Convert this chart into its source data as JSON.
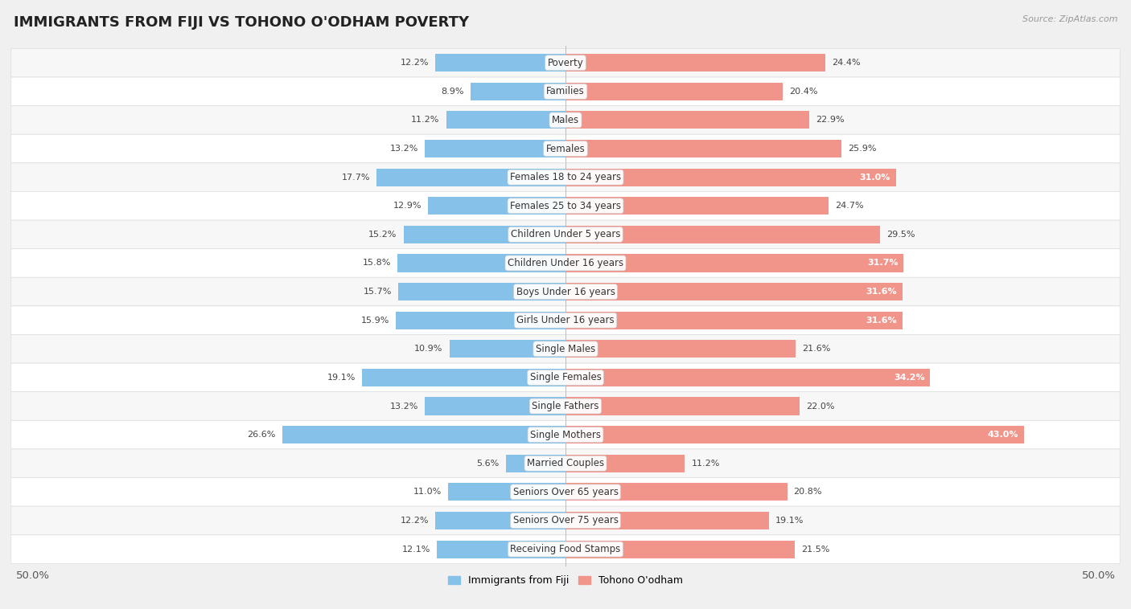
{
  "title": "IMMIGRANTS FROM FIJI VS TOHONO O'ODHAM POVERTY",
  "source": "Source: ZipAtlas.com",
  "categories": [
    "Poverty",
    "Families",
    "Males",
    "Females",
    "Females 18 to 24 years",
    "Females 25 to 34 years",
    "Children Under 5 years",
    "Children Under 16 years",
    "Boys Under 16 years",
    "Girls Under 16 years",
    "Single Males",
    "Single Females",
    "Single Fathers",
    "Single Mothers",
    "Married Couples",
    "Seniors Over 65 years",
    "Seniors Over 75 years",
    "Receiving Food Stamps"
  ],
  "fiji_values": [
    12.2,
    8.9,
    11.2,
    13.2,
    17.7,
    12.9,
    15.2,
    15.8,
    15.7,
    15.9,
    10.9,
    19.1,
    13.2,
    26.6,
    5.6,
    11.0,
    12.2,
    12.1
  ],
  "tohono_values": [
    24.4,
    20.4,
    22.9,
    25.9,
    31.0,
    24.7,
    29.5,
    31.7,
    31.6,
    31.6,
    21.6,
    34.2,
    22.0,
    43.0,
    11.2,
    20.8,
    19.1,
    21.5
  ],
  "fiji_color": "#85C1E9",
  "tohono_color": "#F1948A",
  "row_color_even": "#f7f7f7",
  "row_color_odd": "#ffffff",
  "background_color": "#f0f0f0",
  "legend_fiji": "Immigrants from Fiji",
  "legend_tohono": "Tohono O'odham",
  "title_fontsize": 13,
  "label_fontsize": 8.5,
  "value_fontsize": 8.0,
  "axis_max": 50.0
}
